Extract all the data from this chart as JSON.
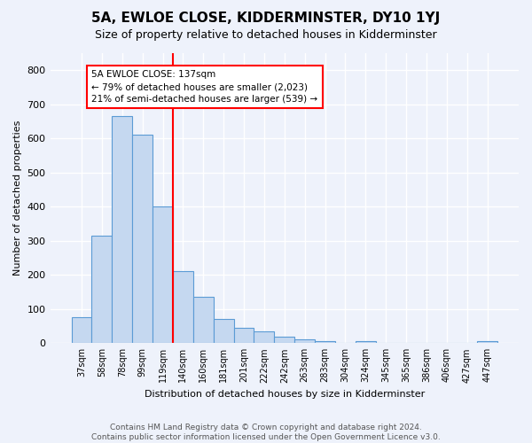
{
  "title": "5A, EWLOE CLOSE, KIDDERMINSTER, DY10 1YJ",
  "subtitle": "Size of property relative to detached houses in Kidderminster",
  "xlabel": "Distribution of detached houses by size in Kidderminster",
  "ylabel": "Number of detached properties",
  "footer_line1": "Contains HM Land Registry data © Crown copyright and database right 2024.",
  "footer_line2": "Contains public sector information licensed under the Open Government Licence v3.0.",
  "categories": [
    "37sqm",
    "58sqm",
    "78sqm",
    "99sqm",
    "119sqm",
    "140sqm",
    "160sqm",
    "181sqm",
    "201sqm",
    "222sqm",
    "242sqm",
    "263sqm",
    "283sqm",
    "304sqm",
    "324sqm",
    "345sqm",
    "365sqm",
    "386sqm",
    "406sqm",
    "427sqm",
    "447sqm"
  ],
  "values": [
    75,
    315,
    665,
    612,
    400,
    210,
    135,
    70,
    45,
    35,
    20,
    12,
    7,
    0,
    6,
    0,
    0,
    0,
    0,
    0,
    7
  ],
  "bar_color": "#c5d8f0",
  "bar_edge_color": "#5b9bd5",
  "vline_color": "red",
  "annotation_line1": "5A EWLOE CLOSE: 137sqm",
  "annotation_line2": "← 79% of detached houses are smaller (2,023)",
  "annotation_line3": "21% of semi-detached houses are larger (539) →",
  "annotation_box_color": "white",
  "annotation_box_edge": "red",
  "ylim": [
    0,
    850
  ],
  "yticks": [
    0,
    100,
    200,
    300,
    400,
    500,
    600,
    700,
    800
  ],
  "background_color": "#eef2fb",
  "grid_color": "white",
  "title_fontsize": 11,
  "subtitle_fontsize": 9,
  "ylabel_fontsize": 8,
  "xlabel_fontsize": 8,
  "footer_fontsize": 6.5,
  "footer_color": "#555555",
  "vline_index": 5
}
